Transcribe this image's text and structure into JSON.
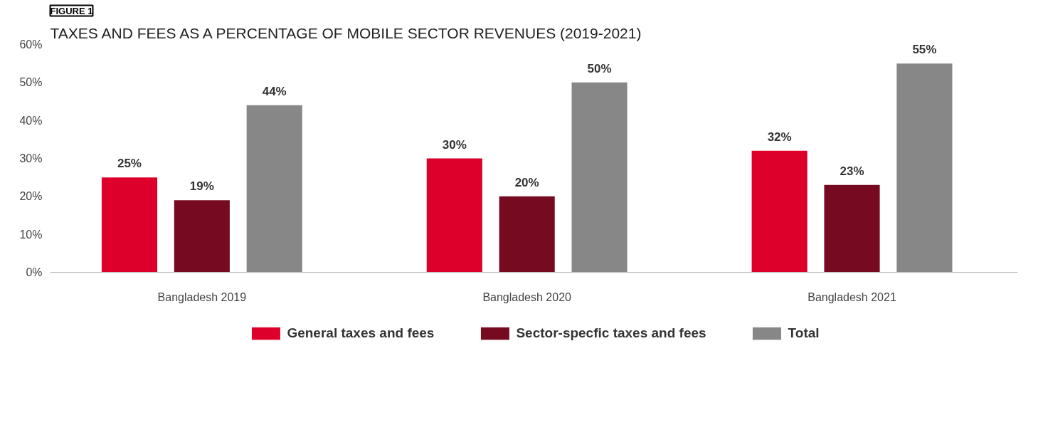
{
  "chart_data": {
    "type": "bar",
    "title": "TAXES AND FEES AS A PERCENTAGE OF MOBILE SECTOR REVENUES (2019-2021)",
    "annotations": [
      "FIGURE 1"
    ],
    "categories": [
      "Bangladesh 2019",
      "Bangladesh 2020",
      "Bangladesh 2021"
    ],
    "series": [
      {
        "name": "General taxes and fees",
        "color": "#dc002b",
        "values": [
          25,
          30,
          32
        ],
        "value_labels": [
          "25%",
          "30%",
          "32%"
        ]
      },
      {
        "name": "Sector-specfic taxes and fees",
        "color": "#760a20",
        "values": [
          19,
          20,
          23
        ],
        "value_labels": [
          "19%",
          "20%",
          "23%"
        ]
      },
      {
        "name": "Total",
        "color": "#878787",
        "values": [
          44,
          50,
          55
        ],
        "value_labels": [
          "44%",
          "50%",
          "55%"
        ]
      }
    ],
    "ylim": [
      0,
      60
    ],
    "yticks": [
      {
        "value": 0,
        "label": "0%"
      },
      {
        "value": 10,
        "label": "10%"
      },
      {
        "value": 20,
        "label": "20%"
      },
      {
        "value": 30,
        "label": "30%"
      },
      {
        "value": 40,
        "label": "40%"
      },
      {
        "value": 50,
        "label": "50%"
      },
      {
        "value": 60,
        "label": "60%"
      }
    ],
    "grid": false,
    "legend": "bottom"
  }
}
